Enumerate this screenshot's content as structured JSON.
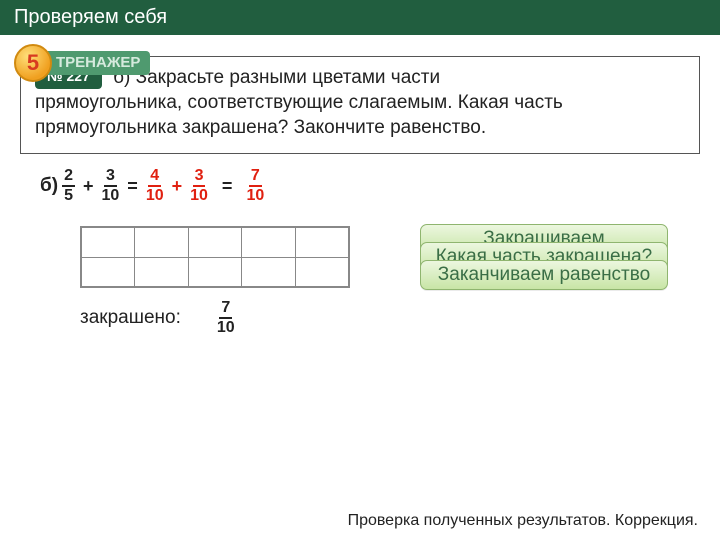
{
  "header": {
    "title": "Проверяем себя"
  },
  "badge": {
    "number": "5",
    "label": "ТРЕНАЖЕР"
  },
  "task": {
    "number_label": "№ 227",
    "text_lead": "б) Закрасьте разными цветами части",
    "text_rest": "прямоугольника, соответствующие слагаемым. Какая часть прямоугольника закрашена? Закончите равенство."
  },
  "equation": {
    "label": "б)",
    "f1": {
      "num": "2",
      "den": "5"
    },
    "plus1": "+",
    "f2": {
      "num": "3",
      "den": "10"
    },
    "eq1": "=",
    "f3": {
      "num": "4",
      "den": "10"
    },
    "plus2": "+",
    "f4": {
      "num": "3",
      "den": "10"
    },
    "eq2": "=",
    "f5": {
      "num": "7",
      "den": "10"
    }
  },
  "grid": {
    "rows": 2,
    "cols": 5
  },
  "painted": {
    "label": "закрашено:",
    "frac": {
      "num": "7",
      "den": "10"
    }
  },
  "buttons": {
    "b1": "Закрашиваем",
    "b2": "Какая часть закрашена?",
    "b3": "Заканчиваем равенство"
  },
  "footer": {
    "text": "Проверка полученных результатов. Коррекция."
  },
  "colors": {
    "header_bg": "#215e3f",
    "accent_red": "#e02010",
    "btn_grad_top": "#ecf7df",
    "btn_grad_bot": "#c8e5a6",
    "btn_text": "#3a6e46"
  }
}
